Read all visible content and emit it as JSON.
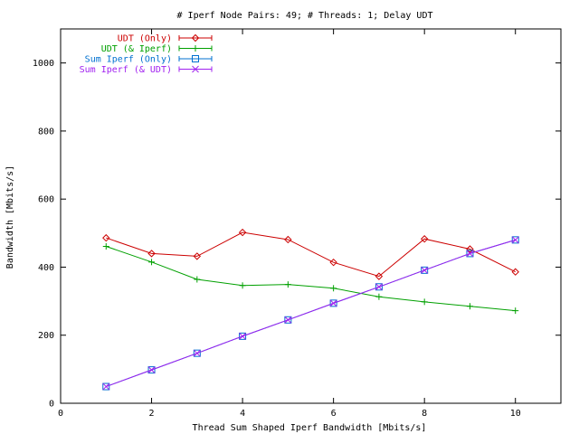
{
  "chart_data": {
    "type": "line",
    "title": "# Iperf Node Pairs: 49; # Threads: 1; Delay UDT",
    "xlabel": "Thread Sum Shaped Iperf Bandwidth [Mbits/s]",
    "ylabel": "Bandwidth [Mbits/s]",
    "xlim": [
      0,
      11
    ],
    "ylim": [
      0,
      1100
    ],
    "xticks": [
      0,
      2,
      4,
      6,
      8,
      10
    ],
    "yticks": [
      0,
      200,
      400,
      600,
      800,
      1000
    ],
    "legend_position": "top-left",
    "grid": false,
    "x": [
      1,
      2,
      3,
      4,
      5,
      6,
      7,
      8,
      9,
      10
    ],
    "series": [
      {
        "name": "UDT (Only)",
        "color": "#cc0000",
        "marker": "diamond",
        "values": [
          486,
          440,
          432,
          502,
          481,
          414,
          373,
          483,
          453,
          386
        ]
      },
      {
        "name": "UDT (& Iperf)",
        "color": "#00a000",
        "marker": "plus",
        "values": [
          461,
          415,
          364,
          346,
          349,
          338,
          313,
          298,
          285,
          272
        ]
      },
      {
        "name": "Sum Iperf (Only)",
        "color": "#0070d0",
        "marker": "square",
        "values": [
          49,
          98,
          147,
          197,
          245,
          294,
          342,
          391,
          440,
          480
        ]
      },
      {
        "name": "Sum Iperf (& UDT)",
        "color": "#a020f0",
        "marker": "x",
        "values": [
          49,
          98,
          147,
          197,
          245,
          294,
          342,
          391,
          440,
          480
        ]
      }
    ]
  }
}
